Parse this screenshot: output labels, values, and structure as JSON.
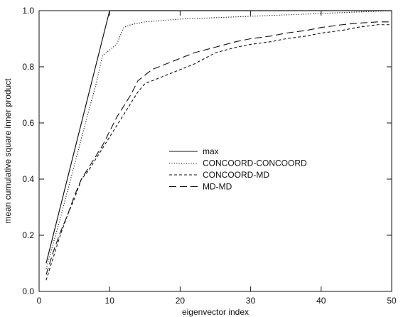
{
  "chart_data": {
    "type": "line",
    "title": "",
    "xlabel": "eigenvector index",
    "ylabel": "mean cumulative square inner product",
    "xlim": [
      0,
      50
    ],
    "ylim": [
      0.0,
      1.0
    ],
    "xticks": [
      0,
      10,
      20,
      30,
      40,
      50
    ],
    "yticks": [
      0.0,
      0.2,
      0.4,
      0.6,
      0.8,
      1.0
    ],
    "xtick_labels": [
      "0",
      "10",
      "20",
      "30",
      "40",
      "50"
    ],
    "ytick_labels": [
      "0.0",
      "0.2",
      "0.4",
      "0.6",
      "0.8",
      "1.0"
    ],
    "grid": false,
    "legend_position": "center-right",
    "series": [
      {
        "name": "max",
        "style": "solid",
        "color": "#111111",
        "x": [
          1,
          10,
          11,
          15,
          20,
          25,
          30,
          35,
          40,
          45,
          50
        ],
        "y": [
          0.1,
          1.0,
          1.0,
          1.0,
          1.0,
          1.0,
          1.0,
          1.0,
          1.0,
          1.0,
          1.0
        ]
      },
      {
        "name": "CONCOORD-CONCOORD",
        "style": "dotted",
        "color": "#111111",
        "x": [
          1,
          3,
          5,
          7,
          8,
          9,
          10,
          11,
          12,
          13,
          15,
          20,
          25,
          30,
          35,
          40,
          45,
          50
        ],
        "y": [
          0.08,
          0.26,
          0.45,
          0.64,
          0.73,
          0.84,
          0.86,
          0.88,
          0.94,
          0.95,
          0.96,
          0.97,
          0.975,
          0.98,
          0.985,
          0.99,
          0.995,
          1.0
        ]
      },
      {
        "name": "CONCOORD-MD",
        "style": "dashed",
        "color": "#111111",
        "x": [
          1,
          2,
          3,
          4,
          5,
          6,
          7,
          8,
          9,
          10,
          11,
          12,
          13,
          14,
          15,
          16,
          18,
          20,
          22,
          25,
          28,
          30,
          33,
          35,
          38,
          40,
          43,
          45,
          48,
          50
        ],
        "y": [
          0.04,
          0.12,
          0.2,
          0.27,
          0.33,
          0.4,
          0.43,
          0.47,
          0.51,
          0.55,
          0.59,
          0.63,
          0.67,
          0.71,
          0.74,
          0.75,
          0.77,
          0.79,
          0.81,
          0.85,
          0.87,
          0.88,
          0.89,
          0.9,
          0.91,
          0.92,
          0.93,
          0.94,
          0.95,
          0.95
        ]
      },
      {
        "name": "MD-MD",
        "style": "long-dash",
        "color": "#111111",
        "x": [
          1,
          2,
          3,
          4,
          5,
          6,
          7,
          8,
          9,
          10,
          11,
          12,
          13,
          14,
          15,
          16,
          18,
          20,
          22,
          25,
          28,
          30,
          33,
          35,
          38,
          40,
          43,
          45,
          48,
          50
        ],
        "y": [
          0.06,
          0.14,
          0.21,
          0.27,
          0.34,
          0.4,
          0.44,
          0.48,
          0.52,
          0.57,
          0.62,
          0.66,
          0.7,
          0.75,
          0.77,
          0.79,
          0.81,
          0.83,
          0.85,
          0.87,
          0.89,
          0.9,
          0.91,
          0.92,
          0.93,
          0.94,
          0.95,
          0.955,
          0.96,
          0.96
        ]
      }
    ]
  }
}
